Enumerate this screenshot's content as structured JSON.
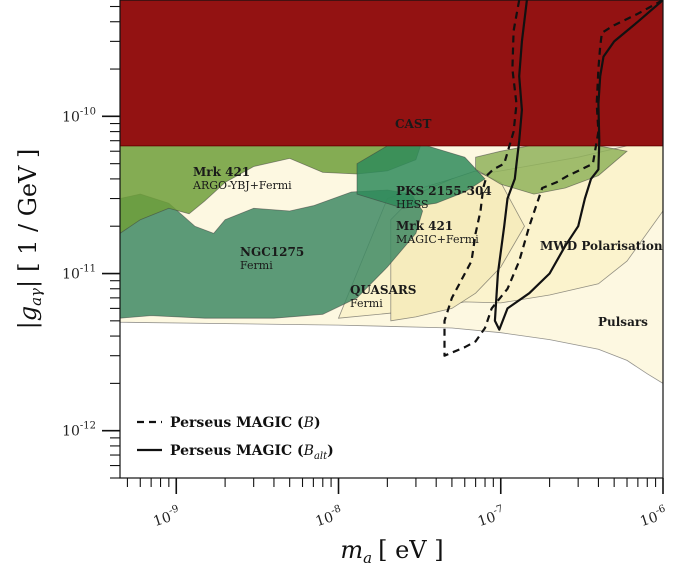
{
  "chart_data": {
    "type": "area",
    "title": "",
    "xlabel": "m_a [ eV ]",
    "ylabel": "|g_aγ| [ 1 / GeV ]",
    "xscale": "log",
    "yscale": "log",
    "xlim": [
      4.5e-10,
      1e-06
    ],
    "ylim": [
      5e-13,
      5.5e-10
    ],
    "grid": false,
    "legend_position": "bottom-left",
    "x_tick_labels": [
      "10^-9",
      "10^-8",
      "10^-7",
      "10^-6"
    ],
    "y_tick_labels": [
      "10^-12",
      "10^-11",
      "10^-10"
    ],
    "regions": [
      {
        "name": "Pulsars",
        "label": "Pulsars",
        "sublabel": "",
        "color": "#fdf8e1",
        "x": [
          4.5e-10,
          1e-08,
          5e-08,
          1e-07,
          2e-07,
          4e-07,
          6e-07,
          8e-07,
          1e-06,
          1e-06,
          4.5e-10
        ],
        "y": [
          4.9e-12,
          4.7e-12,
          4.5e-12,
          4.2e-12,
          3.8e-12,
          3.3e-12,
          2.8e-12,
          2.3e-12,
          2e-12,
          6.5e-11,
          6.5e-11
        ]
      },
      {
        "name": "MWD Polarisation",
        "label": "MWD Polarisation",
        "sublabel": "",
        "color": "#fbf3cd",
        "x": [
          1e-08,
          3e-08,
          6e-08,
          1e-07,
          2e-07,
          4e-07,
          6e-07,
          1e-06,
          1e-06,
          6e-07,
          3e-07,
          1e-07,
          5e-08,
          2e-08
        ],
        "y": [
          5.2e-12,
          5.8e-12,
          6.6e-12,
          6.5e-12,
          7.3e-12,
          8.6e-12,
          1.2e-11,
          2.5e-11,
          6.5e-11,
          6.5e-11,
          5.5e-11,
          4.5e-11,
          4e-11,
          3e-11
        ]
      },
      {
        "name": "QUASARS",
        "label": "QUASARS",
        "sublabel": "Fermi",
        "color": "#f6ecbd",
        "x": [
          2.1e-08,
          3e-08,
          5e-08,
          7e-08,
          1e-07,
          1.4e-07,
          1e-07,
          7e-08,
          5e-08,
          3e-08,
          2.1e-08
        ],
        "y": [
          5e-12,
          5.3e-12,
          6e-12,
          7.5e-12,
          1.1e-11,
          2e-11,
          3.8e-11,
          4.5e-11,
          4e-11,
          3.2e-11,
          2.2e-11
        ]
      },
      {
        "name": "NGC1275",
        "label": "NGC1275",
        "sublabel": "Fermi",
        "color": "#3f8a64",
        "x": [
          4.5e-10,
          7e-10,
          1.5e-09,
          4e-09,
          8e-09,
          1.3e-08,
          2e-08,
          3e-08,
          3.3e-08,
          2.8e-08,
          2e-08,
          1.2e-08,
          7e-09,
          5e-09,
          3e-09,
          2e-09,
          1.7e-09,
          1.3e-09,
          9e-10,
          6e-10,
          4.5e-10
        ],
        "y": [
          5.2e-12,
          5.4e-12,
          5.2e-12,
          5.2e-12,
          5.5e-12,
          7e-12,
          1.1e-11,
          1.8e-11,
          2.5e-11,
          3.2e-11,
          3.4e-11,
          3.3e-11,
          2.7e-11,
          2.5e-11,
          2.6e-11,
          2.2e-11,
          1.8e-11,
          2e-11,
          2.8e-11,
          3.2e-11,
          3e-11
        ]
      },
      {
        "name": "Mrk 421 ARGO-YBJ+Fermi",
        "label": "Mrk 421",
        "sublabel": "ARGO-YBJ+Fermi",
        "color": "#6f9f3a",
        "x": [
          4.5e-10,
          6e-10,
          9e-10,
          1.2e-09,
          1.5e-09,
          2e-09,
          3e-09,
          5e-09,
          8e-09,
          1.3e-08,
          2e-08,
          3e-08,
          3.2e-08,
          2e-08,
          1e-08,
          5e-09,
          2e-09,
          1e-09,
          4.5e-10
        ],
        "y": [
          1.8e-11,
          2.2e-11,
          2.6e-11,
          2.4e-11,
          2.9e-11,
          3.8e-11,
          4.8e-11,
          5.4e-11,
          4.4e-11,
          4.3e-11,
          4.5e-11,
          5.3e-11,
          6.5e-11,
          6.5e-11,
          6.5e-11,
          6.5e-11,
          6.5e-11,
          6.5e-11,
          6.5e-11
        ]
      },
      {
        "name": "PKS 2155-304 HESS",
        "label": "PKS 2155-304",
        "sublabel": "HESS",
        "color": "#2f8b5a",
        "x": [
          1.3e-08,
          2.5e-08,
          4e-08,
          6e-08,
          8e-08,
          6e-08,
          3.5e-08,
          2e-08,
          1.3e-08
        ],
        "y": [
          3.2e-11,
          2.6e-11,
          2.8e-11,
          3.3e-11,
          4e-11,
          5.5e-11,
          6.5e-11,
          6.5e-11,
          5e-11
        ]
      },
      {
        "name": "Mrk 421 MAGIC+Fermi",
        "label": "Mrk 421",
        "sublabel": "MAGIC+Fermi",
        "color": "#8fb25a",
        "x": [
          7e-08,
          1e-07,
          1.6e-07,
          2.5e-07,
          4e-07,
          6e-07,
          4e-07,
          2.5e-07,
          1.5e-07,
          1e-07,
          7e-08
        ],
        "y": [
          4.6e-11,
          3.7e-11,
          3.2e-11,
          3.5e-11,
          4.2e-11,
          6e-11,
          6.5e-11,
          6.5e-11,
          6.5e-11,
          6e-11,
          5.5e-11
        ]
      },
      {
        "name": "CAST",
        "label": "CAST",
        "sublabel": "",
        "color": "#8b0000",
        "x": [
          4.5e-10,
          1e-06,
          1e-06,
          4.5e-10
        ],
        "y": [
          6.5e-11,
          6.5e-11,
          5.5e-10,
          5.5e-10
        ]
      }
    ],
    "series": [
      {
        "name": "Perseus MAGIC (B)",
        "style": "dashed",
        "color": "#111111",
        "x": [
          1.3e-07,
          1.2e-07,
          1.18e-07,
          1.25e-07,
          1.2e-07,
          1.05e-07,
          9e-08,
          8.2e-08,
          7.8e-08,
          7.5e-08,
          7e-08,
          6.6e-08,
          5e-08,
          4.5e-08,
          4.5e-08,
          6e-08,
          7e-08,
          8e-08,
          8.8e-08,
          1.1e-07,
          1.3e-07,
          1.5e-07,
          1.8e-07,
          2.2e-07,
          2.6e-07,
          3e-07,
          3.7e-07,
          4e-07,
          3.9e-07,
          4e-07,
          4.1e-07,
          4.2e-07,
          5e-07,
          7e-07,
          1e-06
        ],
        "y": [
          5.5e-10,
          3.5e-10,
          2e-10,
          1.2e-10,
          8e-11,
          5e-11,
          4.6e-11,
          4.2e-11,
          3.5e-11,
          2.5e-11,
          1.8e-11,
          1.2e-11,
          7e-12,
          5e-12,
          3e-12,
          3.4e-12,
          3.7e-12,
          4.5e-12,
          6e-12,
          8e-12,
          1.2e-11,
          2e-11,
          3.5e-11,
          3.8e-11,
          4.2e-11,
          4.5e-11,
          5e-11,
          8e-11,
          1.2e-10,
          2e-10,
          2.8e-10,
          3.4e-10,
          3.8e-10,
          4.5e-10,
          5.5e-10
        ]
      },
      {
        "name": "Perseus MAGIC (B_alt)",
        "style": "solid",
        "color": "#111111",
        "x": [
          1.45e-07,
          1.35e-07,
          1.3e-07,
          1.35e-07,
          1.3e-07,
          1.25e-07,
          1.22e-07,
          1.1e-07,
          1.05e-07,
          9.6e-08,
          9.2e-08,
          9.8e-08,
          1.1e-07,
          1.5e-07,
          2e-07,
          2.5e-07,
          3e-07,
          3.3e-07,
          3.6e-07,
          4e-07,
          4.05e-07,
          4e-07,
          4.1e-07,
          4.3e-07,
          5e-07,
          7e-07,
          1e-06
        ],
        "y": [
          5.5e-10,
          3e-10,
          1.8e-10,
          1.1e-10,
          7e-11,
          5e-11,
          4e-11,
          3e-11,
          2e-11,
          1e-11,
          5e-12,
          4.4e-12,
          6e-12,
          7.5e-12,
          1e-11,
          1.5e-11,
          2e-11,
          3e-11,
          4e-11,
          4.6e-11,
          7e-11,
          1.2e-10,
          1.8e-10,
          2.4e-10,
          3e-10,
          4e-10,
          5.5e-10
        ]
      }
    ],
    "legend": [
      {
        "text": "Perseus MAGIC (B)",
        "style": "dashed"
      },
      {
        "text": "Perseus MAGIC (B_alt)",
        "style": "solid"
      }
    ]
  }
}
